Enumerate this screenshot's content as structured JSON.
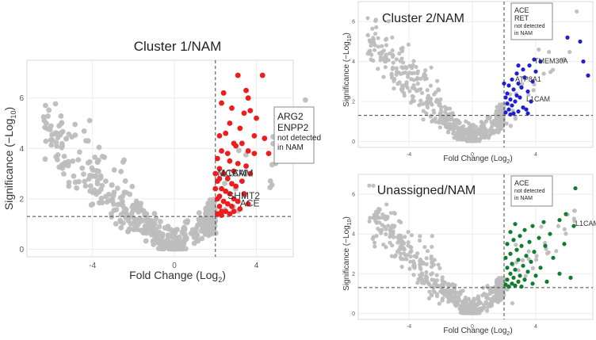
{
  "chart_data": [
    {
      "type": "scatter",
      "title": "Cluster 1/NAM",
      "xlabel": "Fold Change (Log",
      "xlabel_sub": "2",
      "xlabel_end": ")",
      "ylabel": "Significance (−Log",
      "ylabel_sub": "10",
      "ylabel_end": ")",
      "xlim": [
        -7.2,
        5.8
      ],
      "ylim": [
        -0.3,
        7.5
      ],
      "xticks": [
        -4,
        0,
        4
      ],
      "yticks": [
        0,
        2,
        4,
        6
      ],
      "grid": true,
      "thresholds": {
        "x": 2,
        "y": 1.3
      },
      "colors": {
        "up": "#ee1c1c",
        "bg": "#bdbdbd"
      },
      "annotation": [
        "ARG2",
        "ENPP2",
        "not detected",
        "in NAM"
      ],
      "labels": [
        {
          "text": "MCAM",
          "x": 2.1,
          "y": 2.9
        },
        {
          "text": "L1CAM",
          "x": 2.3,
          "y": 2.9
        },
        {
          "text": "SHMT2",
          "x": 2.6,
          "y": 2.0
        },
        {
          "text": "ACE",
          "x": 3.2,
          "y": 1.7
        }
      ],
      "up_points": [
        [
          3.1,
          6.9
        ],
        [
          3.5,
          6.3
        ],
        [
          3.6,
          6.0
        ],
        [
          4.3,
          6.9
        ],
        [
          2.4,
          6.2
        ],
        [
          2.3,
          5.8
        ],
        [
          2.8,
          5.6
        ],
        [
          3.4,
          5.4
        ],
        [
          4.0,
          5.2
        ],
        [
          3.7,
          5.5
        ],
        [
          2.7,
          5.0
        ],
        [
          3.2,
          4.8
        ],
        [
          2.5,
          4.6
        ],
        [
          3.9,
          4.5
        ],
        [
          4.4,
          4.4
        ],
        [
          2.2,
          4.5
        ],
        [
          2.9,
          4.2
        ],
        [
          3.3,
          4.2
        ],
        [
          3.0,
          4.1
        ],
        [
          2.3,
          3.9
        ],
        [
          3.6,
          3.9
        ],
        [
          2.6,
          3.8
        ],
        [
          3.9,
          3.8
        ],
        [
          4.6,
          3.8
        ],
        [
          2.1,
          3.6
        ],
        [
          2.7,
          3.5
        ],
        [
          3.1,
          3.4
        ],
        [
          3.5,
          3.3
        ],
        [
          2.2,
          3.2
        ],
        [
          2.9,
          3.1
        ],
        [
          3.7,
          3.0
        ],
        [
          2.4,
          3.0
        ],
        [
          2.6,
          2.8
        ],
        [
          3.3,
          2.7
        ],
        [
          2.1,
          2.7
        ],
        [
          2.8,
          2.6
        ],
        [
          3.0,
          2.5
        ],
        [
          2.3,
          2.4
        ],
        [
          2.5,
          2.3
        ],
        [
          2.7,
          2.2
        ],
        [
          3.4,
          2.2
        ],
        [
          2.2,
          2.1
        ],
        [
          2.9,
          2.0
        ],
        [
          3.1,
          1.9
        ],
        [
          2.4,
          1.9
        ],
        [
          2.6,
          1.8
        ],
        [
          2.2,
          1.7
        ],
        [
          2.8,
          1.7
        ],
        [
          3.2,
          1.6
        ],
        [
          2.3,
          1.5
        ],
        [
          2.5,
          1.5
        ],
        [
          2.1,
          1.4
        ],
        [
          2.7,
          1.4
        ],
        [
          2.3,
          1.35
        ],
        [
          2.9,
          1.5
        ],
        [
          3.6,
          1.8
        ],
        [
          2.0,
          2.4
        ],
        [
          2.0,
          3.0
        ],
        [
          2.1,
          2.0
        ],
        [
          2.2,
          2.8
        ]
      ]
    },
    {
      "type": "scatter",
      "title": "Cluster 2/NAM",
      "xlabel": "Fold Change (Log",
      "xlabel_sub": "2",
      "xlabel_end": ")",
      "ylabel": "Significance (−Log",
      "ylabel_sub": "10",
      "ylabel_end": ")",
      "xlim": [
        -7.2,
        7.6
      ],
      "ylim": [
        -0.3,
        7.0
      ],
      "xticks": [
        -4,
        0,
        4
      ],
      "yticks": [
        0,
        2,
        4,
        6
      ],
      "grid": true,
      "thresholds": {
        "x": 2,
        "y": 1.3
      },
      "colors": {
        "up": "#1f1fcf",
        "bg": "#bdbdbd"
      },
      "annotation": [
        "ACE",
        "RET",
        "not detected",
        "in NAM"
      ],
      "labels": [
        {
          "text": "TMEM30A",
          "x": 3.9,
          "y": 3.9
        },
        {
          "text": "ATP8A1",
          "x": 2.7,
          "y": 3.0
        },
        {
          "text": "L1CAM",
          "x": 3.4,
          "y": 2.0
        }
      ],
      "up_points": [
        [
          6.0,
          5.2
        ],
        [
          4.6,
          5.4
        ],
        [
          7.0,
          4.0
        ],
        [
          7.3,
          3.3
        ],
        [
          6.8,
          5.0
        ],
        [
          3.9,
          4.1
        ],
        [
          4.3,
          4.0
        ],
        [
          3.6,
          3.8
        ],
        [
          3.2,
          3.6
        ],
        [
          4.0,
          3.5
        ],
        [
          2.8,
          3.4
        ],
        [
          3.3,
          3.2
        ],
        [
          2.5,
          3.1
        ],
        [
          3.8,
          3.0
        ],
        [
          2.9,
          2.9
        ],
        [
          2.3,
          2.8
        ],
        [
          3.1,
          2.7
        ],
        [
          2.6,
          2.6
        ],
        [
          3.5,
          2.5
        ],
        [
          2.2,
          2.4
        ],
        [
          2.8,
          2.3
        ],
        [
          3.0,
          2.2
        ],
        [
          2.4,
          2.1
        ],
        [
          2.7,
          2.0
        ],
        [
          2.2,
          1.9
        ],
        [
          2.5,
          1.8
        ],
        [
          3.2,
          1.7
        ],
        [
          2.3,
          1.6
        ],
        [
          2.9,
          1.5
        ],
        [
          2.1,
          1.45
        ],
        [
          2.6,
          1.4
        ],
        [
          3.4,
          1.6
        ],
        [
          2.4,
          1.35
        ],
        [
          3.7,
          2.0
        ],
        [
          2.1,
          2.2
        ],
        [
          2.0,
          2.9
        ],
        [
          2.9,
          3.8
        ],
        [
          3.5,
          1.4
        ]
      ]
    },
    {
      "type": "scatter",
      "title": "Unassigned/NAM",
      "xlabel": "Fold Change (Log",
      "xlabel_sub": "2",
      "xlabel_end": ")",
      "ylabel": "Significance (−Log",
      "ylabel_sub": "10",
      "ylabel_end": ")",
      "xlim": [
        -7.2,
        7.6
      ],
      "ylim": [
        -0.3,
        7.0
      ],
      "xticks": [
        -4,
        0,
        4
      ],
      "yticks": [
        0,
        2,
        4,
        6
      ],
      "grid": true,
      "thresholds": {
        "x": 2,
        "y": 1.3
      },
      "colors": {
        "up": "#0e7d2e",
        "bg": "#bdbdbd"
      },
      "annotation": [
        "ACE",
        "not detected",
        "in NAM"
      ],
      "labels": [
        {
          "text": "L1CAM",
          "x": 6.5,
          "y": 4.4
        }
      ],
      "up_points": [
        [
          6.5,
          6.3
        ],
        [
          5.9,
          5.0
        ],
        [
          6.4,
          4.4
        ],
        [
          5.5,
          4.7
        ],
        [
          4.5,
          4.6
        ],
        [
          3.8,
          4.4
        ],
        [
          2.7,
          4.5
        ],
        [
          3.3,
          4.2
        ],
        [
          2.4,
          4.1
        ],
        [
          4.9,
          4.0
        ],
        [
          3.0,
          3.9
        ],
        [
          4.2,
          3.8
        ],
        [
          2.6,
          3.7
        ],
        [
          3.6,
          3.6
        ],
        [
          2.2,
          3.5
        ],
        [
          4.6,
          3.4
        ],
        [
          3.1,
          3.4
        ],
        [
          2.8,
          3.2
        ],
        [
          3.9,
          3.1
        ],
        [
          2.4,
          3.0
        ],
        [
          3.4,
          2.9
        ],
        [
          2.1,
          2.8
        ],
        [
          5.1,
          2.8
        ],
        [
          2.9,
          2.7
        ],
        [
          3.7,
          2.6
        ],
        [
          2.5,
          2.5
        ],
        [
          3.2,
          2.4
        ],
        [
          4.3,
          2.3
        ],
        [
          2.2,
          2.3
        ],
        [
          2.7,
          2.2
        ],
        [
          3.5,
          2.1
        ],
        [
          2.4,
          2.0
        ],
        [
          3.0,
          1.9
        ],
        [
          4.0,
          1.9
        ],
        [
          2.6,
          1.8
        ],
        [
          2.2,
          1.7
        ],
        [
          3.3,
          1.7
        ],
        [
          2.9,
          1.6
        ],
        [
          2.5,
          1.5
        ],
        [
          2.1,
          1.45
        ],
        [
          3.8,
          1.5
        ],
        [
          2.7,
          1.4
        ],
        [
          5.5,
          2.0
        ],
        [
          6.2,
          1.8
        ],
        [
          4.7,
          1.6
        ],
        [
          5.8,
          3.5
        ],
        [
          2.3,
          1.35
        ],
        [
          3.1,
          1.35
        ]
      ]
    }
  ]
}
